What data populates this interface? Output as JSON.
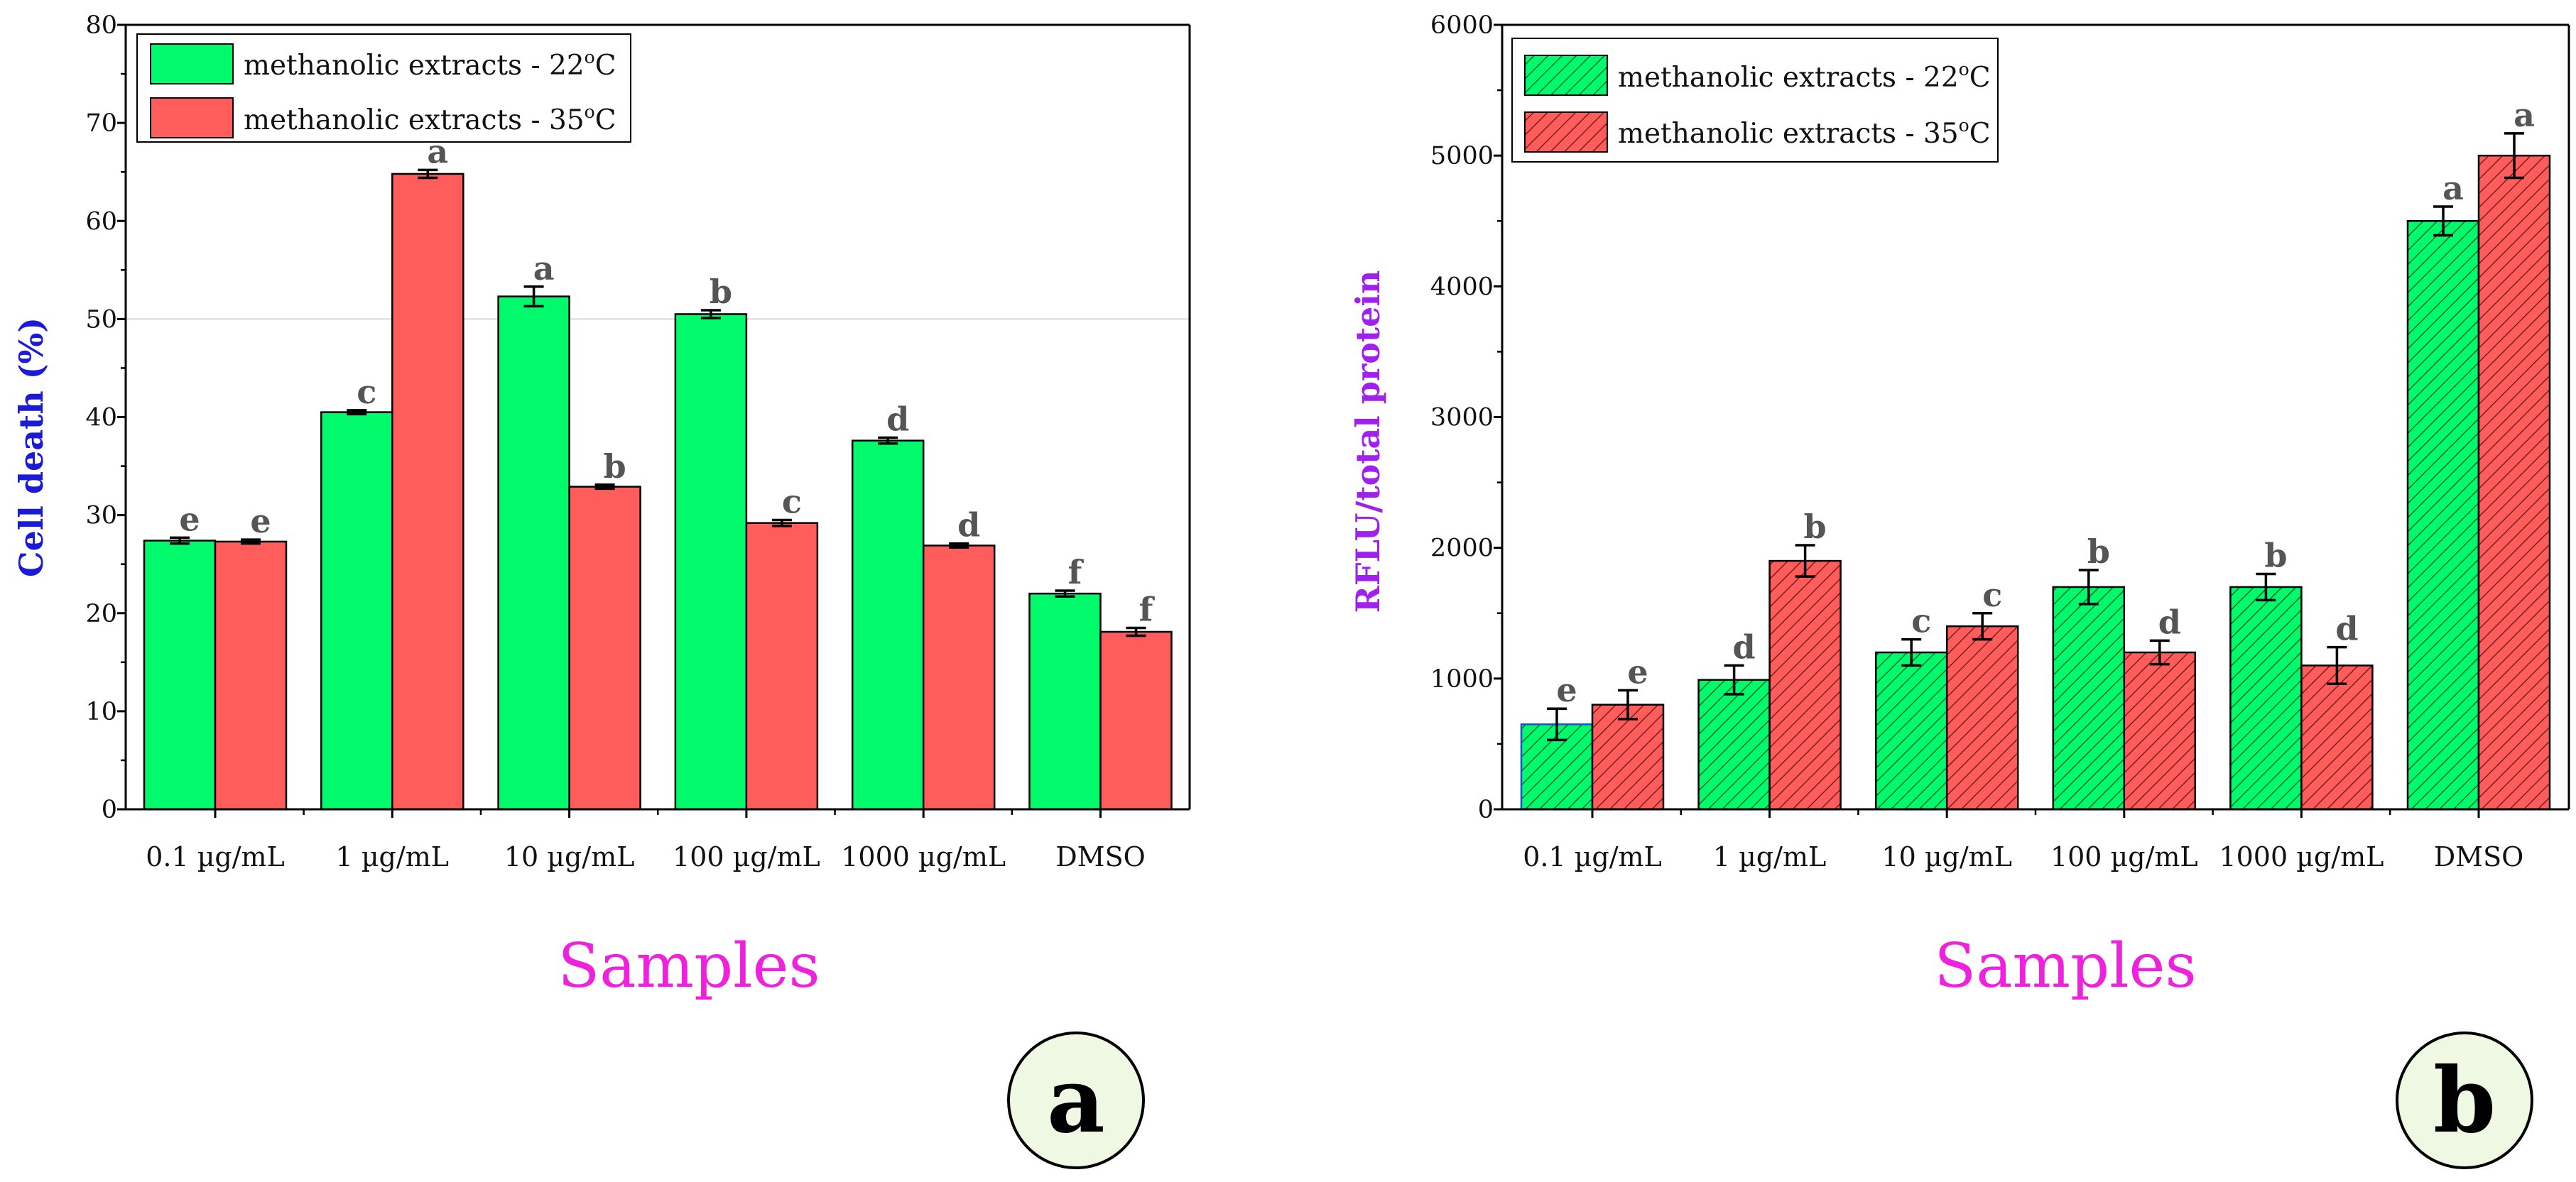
{
  "colors": {
    "series_22": "#00fa6b",
    "series_35": "#ff5c5c",
    "axis": "#000000",
    "letter": "#555555",
    "ylabel_a": "#1a1ad8",
    "ylabel_b": "#a020f0",
    "xlabel": "#ee22dd",
    "badge_fill": "#eef8e2"
  },
  "chart_data": [
    {
      "type": "bar",
      "panel": "a",
      "badge": "a",
      "ylabel": "Cell death (%)",
      "xlabel": "Samples",
      "ylim": [
        0,
        80
      ],
      "yticks": [
        0,
        10,
        20,
        30,
        40,
        50,
        60,
        70,
        80
      ],
      "gridlines": [
        50
      ],
      "hatched": false,
      "legend_position": "top-left",
      "categories": [
        "0.1 µg/mL",
        "1 µg/mL",
        "10 µg/mL",
        "100 µg/mL",
        "1000 µg/mL",
        "DMSO"
      ],
      "series": [
        {
          "name": "methanolic extracts - 22",
          "unit_sup": "o",
          "unit": "C",
          "values": [
            27.4,
            40.5,
            52.3,
            50.5,
            37.6,
            22.0
          ],
          "errors": [
            0.3,
            0.2,
            1.0,
            0.4,
            0.3,
            0.3
          ],
          "letters": [
            "e",
            "c",
            "a",
            "b",
            "d",
            "f"
          ]
        },
        {
          "name": "methanolic extracts - 35",
          "unit_sup": "o",
          "unit": "C",
          "values": [
            27.3,
            64.8,
            32.9,
            29.2,
            26.9,
            18.1
          ],
          "errors": [
            0.2,
            0.4,
            0.2,
            0.3,
            0.2,
            0.4
          ],
          "letters": [
            "e",
            "a",
            "b",
            "c",
            "d",
            "f"
          ]
        }
      ]
    },
    {
      "type": "bar",
      "panel": "b",
      "badge": "b",
      "ylabel": "RFLU/total protein",
      "xlabel": "Samples",
      "ylim": [
        0,
        6000
      ],
      "yticks": [
        0,
        1000,
        2000,
        3000,
        4000,
        5000,
        6000
      ],
      "gridlines": [],
      "hatched": true,
      "legend_position": "top-left",
      "categories": [
        "0.1 µg/mL",
        "1 µg/mL",
        "10 µg/mL",
        "100 µg/mL",
        "1000 µg/mL",
        "DMSO"
      ],
      "series": [
        {
          "name": "methanolic extracts - 22",
          "unit_sup": "o",
          "unit": "C",
          "values": [
            650,
            990,
            1200,
            1700,
            1700,
            4500
          ],
          "errors": [
            120,
            110,
            100,
            130,
            100,
            110
          ],
          "letters": [
            "e",
            "d",
            "c",
            "b",
            "b",
            "a"
          ]
        },
        {
          "name": "methanolic extracts - 35",
          "unit_sup": "o",
          "unit": "C",
          "values": [
            800,
            1900,
            1400,
            1200,
            1100,
            5000
          ],
          "errors": [
            110,
            120,
            100,
            90,
            140,
            170
          ],
          "letters": [
            "e",
            "b",
            "c",
            "d",
            "d",
            "a"
          ]
        }
      ]
    }
  ]
}
